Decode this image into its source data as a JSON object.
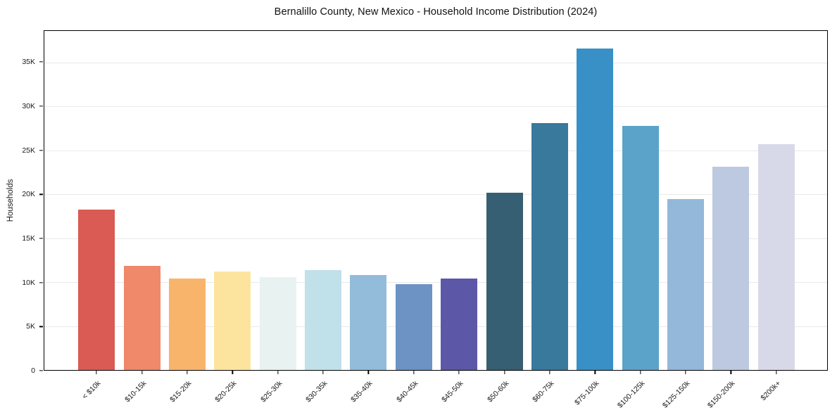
{
  "chart_data": {
    "type": "bar",
    "title": "Bernalillo County, New Mexico - Household Income Distribution (2024)",
    "xlabel": "",
    "ylabel": "Households",
    "ylim": [
      0,
      38600
    ],
    "grid": "horizontal",
    "legend": "none",
    "background_color": "#ffffff",
    "gridline_color": "#e9e9e9",
    "spine_color": "#000000",
    "text_color": "#1a1a1a",
    "categories": [
      "< $10k",
      "$10-15k",
      "$15-20k",
      "$20-25k",
      "$25-30k",
      "$30-35k",
      "$35-40k",
      "$40-45k",
      "$45-50k",
      "$50-60k",
      "$60-75k",
      "$75-100k",
      "$100-125k",
      "$125-150k",
      "$150-200k",
      "$200k+"
    ],
    "values": [
      18250,
      11850,
      10400,
      11200,
      10550,
      11350,
      10800,
      9750,
      10400,
      20200,
      28100,
      36600,
      27800,
      19450,
      23150,
      25700
    ],
    "bar_colors": [
      "#d95b53",
      "#f0886a",
      "#f9b46b",
      "#fde49e",
      "#e8f2f0",
      "#c0e0ea",
      "#92bcd9",
      "#6d92c4",
      "#5c57a7",
      "#375f73",
      "#38799c",
      "#3890c6",
      "#5ba3c9",
      "#93b8d9",
      "#bdc9e0",
      "#d7d9e8"
    ],
    "yticks": [
      {
        "v": 0,
        "label": "0"
      },
      {
        "v": 5000,
        "label": "5K"
      },
      {
        "v": 10000,
        "label": "10K"
      },
      {
        "v": 15000,
        "label": "15K"
      },
      {
        "v": 20000,
        "label": "20K"
      },
      {
        "v": 25000,
        "label": "25K"
      },
      {
        "v": 30000,
        "label": "30K"
      },
      {
        "v": 35000,
        "label": "35K"
      }
    ]
  }
}
